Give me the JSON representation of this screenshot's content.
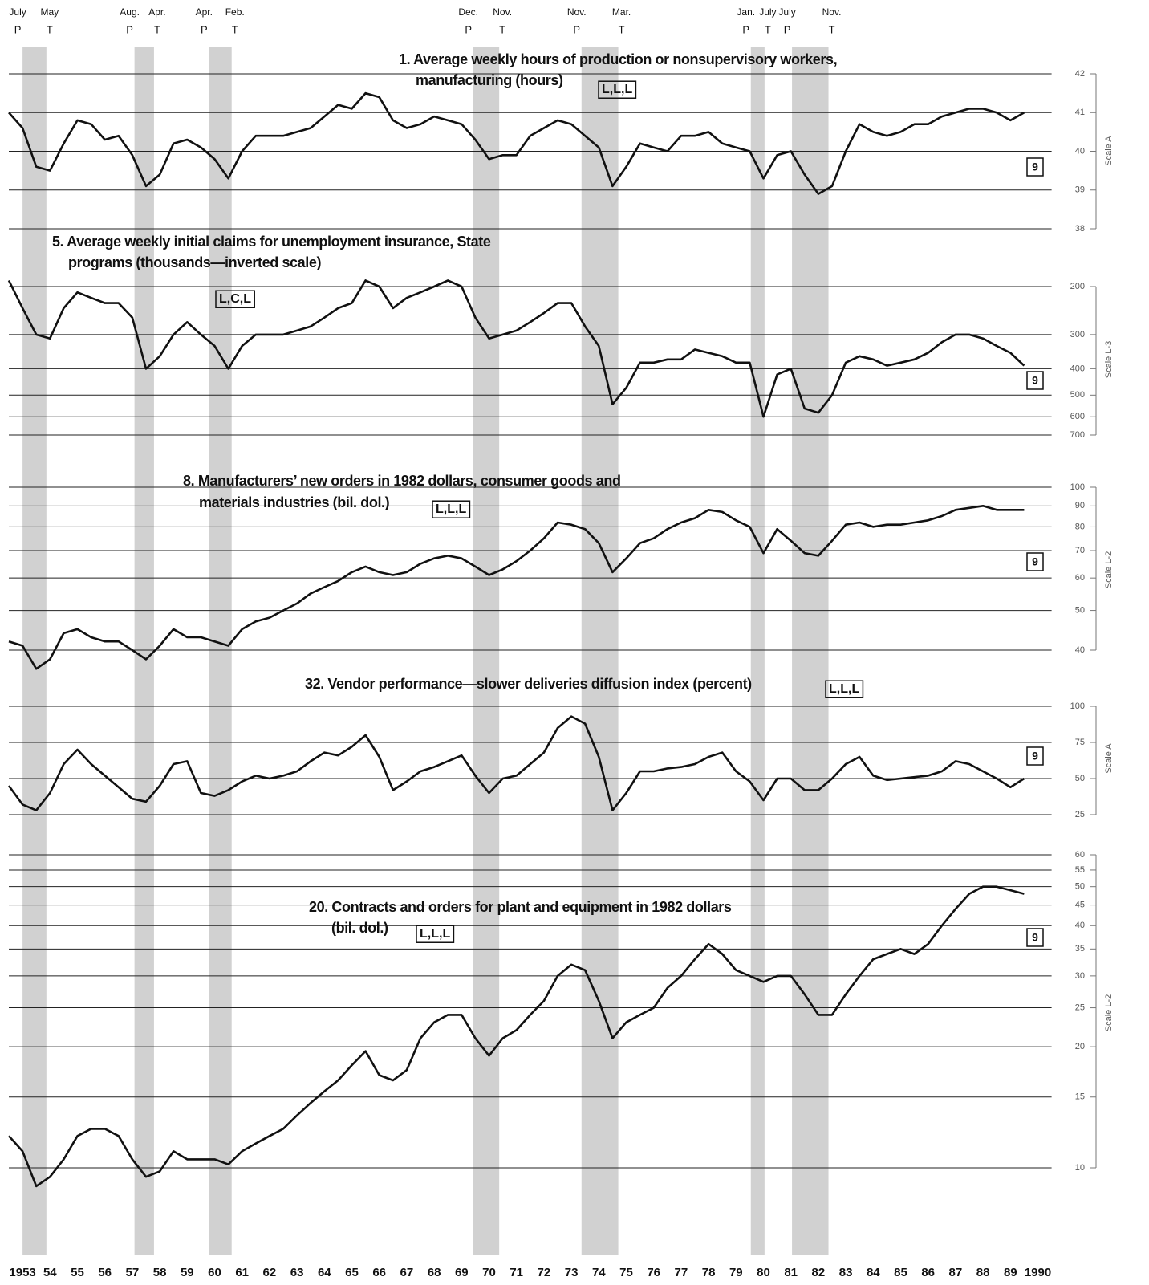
{
  "chart_data": {
    "type": "line",
    "color": "#111111",
    "shade_color": "#bdbdbd",
    "xlim": [
      1953,
      1991
    ],
    "xticks": [
      1953,
      {
        "value": 1954,
        "label": "54"
      },
      {
        "value": 1955,
        "label": "55"
      },
      {
        "value": 1956,
        "label": "56"
      },
      {
        "value": 1957,
        "label": "57"
      },
      {
        "value": 1958,
        "label": "58"
      },
      {
        "value": 1959,
        "label": "59"
      },
      {
        "value": 1960,
        "label": "60"
      },
      {
        "value": 1961,
        "label": "61"
      },
      {
        "value": 1962,
        "label": "62"
      },
      {
        "value": 1963,
        "label": "63"
      },
      {
        "value": 1964,
        "label": "64"
      },
      {
        "value": 1965,
        "label": "65"
      },
      {
        "value": 1966,
        "label": "66"
      },
      {
        "value": 1967,
        "label": "67"
      },
      {
        "value": 1968,
        "label": "68"
      },
      {
        "value": 1969,
        "label": "69"
      },
      {
        "value": 1970,
        "label": "70"
      },
      {
        "value": 1971,
        "label": "71"
      },
      {
        "value": 1972,
        "label": "72"
      },
      {
        "value": 1973,
        "label": "73"
      },
      {
        "value": 1974,
        "label": "74"
      },
      {
        "value": 1975,
        "label": "75"
      },
      {
        "value": 1976,
        "label": "76"
      },
      {
        "value": 1977,
        "label": "77"
      },
      {
        "value": 1978,
        "label": "78"
      },
      {
        "value": 1979,
        "label": "79"
      },
      {
        "value": 1980,
        "label": "80"
      },
      {
        "value": 1981,
        "label": "81"
      },
      {
        "value": 1982,
        "label": "82"
      },
      {
        "value": 1983,
        "label": "83"
      },
      {
        "value": 1984,
        "label": "84"
      },
      {
        "value": 1985,
        "label": "85"
      },
      {
        "value": 1986,
        "label": "86"
      },
      {
        "value": 1987,
        "label": "87"
      },
      {
        "value": 1988,
        "label": "88"
      },
      {
        "value": 1989,
        "label": "89"
      },
      1990
    ],
    "peak_marker": "P",
    "trough_marker": "T",
    "recessions": [
      {
        "peak": "July",
        "trough": "May",
        "start": 1953.5,
        "end": 1954.37
      },
      {
        "peak": "Aug.",
        "trough": "Apr.",
        "start": 1957.58,
        "end": 1958.29
      },
      {
        "peak": "Apr.",
        "trough": "Feb.",
        "start": 1960.29,
        "end": 1961.12
      },
      {
        "peak": "Dec.",
        "trough": "Nov.",
        "start": 1969.92,
        "end": 1970.87
      },
      {
        "peak": "Nov.",
        "trough": "Mar.",
        "start": 1973.87,
        "end": 1975.21
      },
      {
        "peak": "Jan.",
        "trough": "July",
        "start": 1980.04,
        "end": 1980.54
      },
      {
        "peak": "July",
        "trough": "Nov.",
        "start": 1981.54,
        "end": 1982.87
      }
    ],
    "x": [
      1953,
      1953.5,
      1954,
      1954.5,
      1955,
      1955.5,
      1956,
      1956.5,
      1957,
      1957.5,
      1958,
      1958.5,
      1959,
      1959.5,
      1960,
      1960.5,
      1961,
      1961.5,
      1962,
      1962.5,
      1963,
      1963.5,
      1964,
      1964.5,
      1965,
      1965.5,
      1966,
      1966.5,
      1967,
      1967.5,
      1968,
      1968.5,
      1969,
      1969.5,
      1970,
      1970.5,
      1971,
      1971.5,
      1972,
      1972.5,
      1973,
      1973.5,
      1974,
      1974.5,
      1975,
      1975.5,
      1976,
      1976.5,
      1977,
      1977.5,
      1978,
      1978.5,
      1979,
      1979.5,
      1980,
      1980.5,
      1981,
      1981.5,
      1982,
      1982.5,
      1983,
      1983.5,
      1984,
      1984.5,
      1985,
      1985.5,
      1986,
      1986.5,
      1987,
      1987.5,
      1988,
      1988.5,
      1989,
      1989.5,
      1990
    ],
    "panels": [
      {
        "title": [
          "1. Average weekly hours of production or nonsupervisory workers,",
          "manufacturing (hours)"
        ],
        "code": "L,L,L",
        "box": "9",
        "scale": "Scale A",
        "log": false,
        "inverted": false,
        "ylim": [
          38,
          42
        ],
        "yticks": [
          38,
          39,
          40,
          41,
          42
        ],
        "values": [
          41,
          40.6,
          39.6,
          39.5,
          40.2,
          40.8,
          40.7,
          40.3,
          40.4,
          39.9,
          39.1,
          39.4,
          40.2,
          40.3,
          40.1,
          39.8,
          39.3,
          40,
          40.4,
          40.4,
          40.4,
          40.5,
          40.6,
          40.9,
          41.2,
          41.1,
          41.5,
          41.4,
          40.8,
          40.6,
          40.7,
          40.9,
          40.8,
          40.7,
          40.3,
          39.8,
          39.9,
          39.9,
          40.4,
          40.6,
          40.8,
          40.7,
          40.4,
          40.1,
          39.1,
          39.6,
          40.2,
          40.1,
          40,
          40.4,
          40.4,
          40.5,
          40.2,
          40.1,
          40,
          39.3,
          39.9,
          40,
          39.4,
          38.9,
          39.1,
          40,
          40.7,
          40.5,
          40.4,
          40.5,
          40.7,
          40.7,
          40.9,
          41,
          41.1,
          41.1,
          41,
          40.8,
          41
        ]
      },
      {
        "title": [
          "5. Average weekly initial claims for unemployment insurance, State",
          "programs (thousands—inverted scale)"
        ],
        "code": "L,C,L",
        "box": "9",
        "scale": "Scale L-3",
        "log": true,
        "inverted": true,
        "ylim": [
          200,
          700
        ],
        "yticks": [
          200,
          300,
          400,
          500,
          600,
          700
        ],
        "values": [
          190,
          240,
          300,
          310,
          240,
          210,
          220,
          230,
          230,
          260,
          400,
          360,
          300,
          270,
          300,
          330,
          400,
          330,
          300,
          300,
          300,
          290,
          280,
          260,
          240,
          230,
          190,
          200,
          240,
          220,
          210,
          200,
          190,
          200,
          260,
          310,
          300,
          290,
          270,
          250,
          230,
          230,
          280,
          330,
          540,
          470,
          380,
          380,
          370,
          370,
          340,
          350,
          360,
          380,
          380,
          600,
          420,
          400,
          560,
          580,
          500,
          380,
          360,
          370,
          390,
          380,
          370,
          350,
          320,
          300,
          300,
          310,
          330,
          350,
          390
        ]
      },
      {
        "title": [
          "8. Manufacturers’ new orders in 1982 dollars, consumer goods and",
          "materials industries (bil. dol.)"
        ],
        "code": "L,L,L",
        "box": "9",
        "scale": "Scale L-2",
        "log": true,
        "inverted": false,
        "ylim": [
          40,
          100
        ],
        "yticks": [
          40,
          50,
          60,
          70,
          80,
          90,
          100
        ],
        "values": [
          42,
          41,
          36,
          38,
          44,
          45,
          43,
          42,
          42,
          40,
          38,
          41,
          45,
          43,
          43,
          42,
          41,
          45,
          47,
          48,
          50,
          52,
          55,
          57,
          59,
          62,
          64,
          62,
          61,
          62,
          65,
          67,
          68,
          67,
          64,
          61,
          63,
          66,
          70,
          75,
          82,
          81,
          79,
          73,
          62,
          67,
          73,
          75,
          79,
          82,
          84,
          88,
          87,
          83,
          80,
          69,
          79,
          74,
          69,
          68,
          74,
          81,
          82,
          80,
          81,
          81,
          82,
          83,
          85,
          88,
          89,
          90,
          88,
          88,
          88
        ]
      },
      {
        "title": [
          "32. Vendor performance—slower deliveries diffusion index (percent)"
        ],
        "code": "L,L,L",
        "box": "9",
        "scale": "Scale A",
        "log": false,
        "inverted": false,
        "ylim": [
          25,
          100
        ],
        "yticks": [
          25,
          50,
          75,
          100
        ],
        "values": [
          45,
          32,
          28,
          40,
          60,
          70,
          60,
          52,
          44,
          36,
          34,
          45,
          60,
          62,
          40,
          38,
          42,
          48,
          52,
          50,
          52,
          55,
          62,
          68,
          66,
          72,
          80,
          65,
          42,
          48,
          55,
          58,
          62,
          66,
          52,
          40,
          50,
          52,
          60,
          68,
          85,
          93,
          88,
          65,
          28,
          40,
          55,
          55,
          57,
          58,
          60,
          65,
          68,
          55,
          48,
          35,
          50,
          50,
          42,
          42,
          50,
          60,
          65,
          52,
          49,
          50,
          51,
          52,
          55,
          62,
          60,
          55,
          50,
          44,
          50
        ]
      },
      {
        "title": [
          "20. Contracts and orders for plant and equipment in 1982 dollars",
          "(bil. dol.)"
        ],
        "code": "L,L,L",
        "box": "9",
        "scale": "Scale L-2",
        "log": true,
        "inverted": false,
        "ylim": [
          10,
          60
        ],
        "yticks": [
          10,
          15,
          20,
          25,
          30,
          35,
          40,
          45,
          50,
          55,
          60
        ],
        "values": [
          12,
          11,
          9,
          9.5,
          10.5,
          12,
          12.5,
          12.5,
          12,
          10.5,
          9.5,
          9.8,
          11,
          10.5,
          10.5,
          10.5,
          10.2,
          11,
          11.5,
          12,
          12.5,
          13.5,
          14.5,
          15.5,
          16.5,
          18,
          19.5,
          17,
          16.5,
          17.5,
          21,
          23,
          24,
          24,
          21,
          19,
          21,
          22,
          24,
          26,
          30,
          32,
          31,
          26,
          21,
          23,
          24,
          25,
          28,
          30,
          33,
          36,
          34,
          31,
          30,
          29,
          30,
          30,
          27,
          24,
          24,
          27,
          30,
          33,
          34,
          35,
          34,
          36,
          40,
          44,
          48,
          50,
          50,
          49,
          48
        ]
      }
    ]
  }
}
